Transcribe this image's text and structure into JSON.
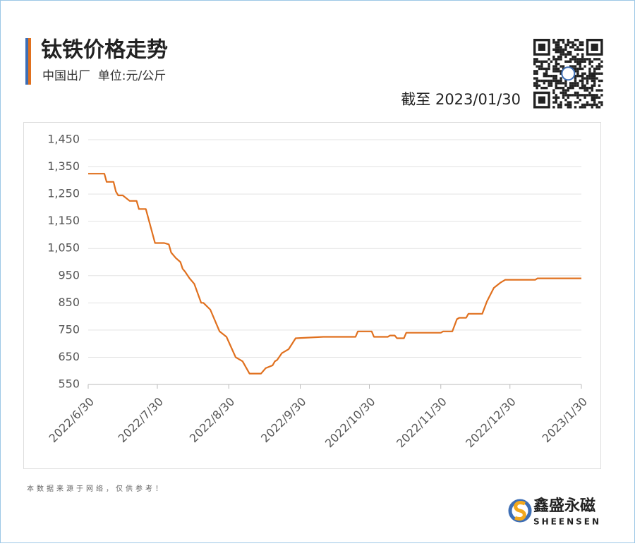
{
  "header": {
    "title": "钛铁价格走势",
    "subtitle": "中国出厂  单位:元/公斤",
    "as_of": "截至 2023/01/30"
  },
  "chart_data": {
    "type": "line",
    "x": [
      "2022/6/30",
      "2022/7/7",
      "2022/7/8",
      "2022/7/11",
      "2022/7/12",
      "2022/7/13",
      "2022/7/15",
      "2022/7/18",
      "2022/7/21",
      "2022/7/22",
      "2022/7/25",
      "2022/7/29",
      "2022/8/2",
      "2022/8/4",
      "2022/8/5",
      "2022/8/7",
      "2022/8/9",
      "2022/8/10",
      "2022/8/11",
      "2022/8/13",
      "2022/8/15",
      "2022/8/18",
      "2022/8/19",
      "2022/8/22",
      "2022/8/26",
      "2022/8/29",
      "2022/9/2",
      "2022/9/5",
      "2022/9/8",
      "2022/9/13",
      "2022/9/15",
      "2022/9/18",
      "2022/9/19",
      "2022/9/20",
      "2022/9/22",
      "2022/9/25",
      "2022/9/28",
      "2022/10/10",
      "2022/10/24",
      "2022/10/25",
      "2022/10/31",
      "2022/11/1",
      "2022/11/7",
      "2022/11/8",
      "2022/11/10",
      "2022/11/11",
      "2022/11/14",
      "2022/11/15",
      "2022/11/30",
      "2022/12/1",
      "2022/12/5",
      "2022/12/7",
      "2022/12/8",
      "2022/12/11",
      "2022/12/12",
      "2022/12/18",
      "2022/12/20",
      "2022/12/23",
      "2022/12/26",
      "2022/12/28",
      "2023/1/10",
      "2023/1/11",
      "2023/1/30"
    ],
    "values": [
      1325,
      1325,
      1295,
      1295,
      1260,
      1245,
      1245,
      1225,
      1225,
      1195,
      1195,
      1070,
      1070,
      1065,
      1035,
      1015,
      1000,
      975,
      965,
      940,
      920,
      850,
      850,
      825,
      745,
      725,
      650,
      635,
      590,
      590,
      610,
      620,
      635,
      640,
      665,
      680,
      720,
      725,
      725,
      745,
      745,
      725,
      725,
      730,
      730,
      720,
      720,
      740,
      740,
      745,
      745,
      790,
      795,
      795,
      810,
      810,
      855,
      905,
      925,
      935,
      935,
      940,
      940
    ],
    "color": "#e0701e",
    "xlim": [
      "2022/6/30",
      "2023/1/30"
    ],
    "xticks": [
      "2022/6/30",
      "2022/7/30",
      "2022/8/30",
      "2022/9/30",
      "2022/10/30",
      "2022/11/30",
      "2022/12/30",
      "2023/1/30"
    ],
    "ylim": [
      550,
      1450
    ],
    "yticks": [
      550,
      650,
      750,
      850,
      950,
      {
        "value": 1050,
        "label": "1,050"
      },
      {
        "value": 1150,
        "label": "1,150"
      },
      {
        "value": 1250,
        "label": "1,250"
      },
      {
        "value": 1350,
        "label": "1,350"
      },
      {
        "value": 1450,
        "label": "1,450"
      }
    ],
    "grid": true
  },
  "footer": {
    "note": "本数据来源于网络，仅供参考！",
    "brand": "鑫盛永磁",
    "brand_en": "SHEENSEN"
  }
}
